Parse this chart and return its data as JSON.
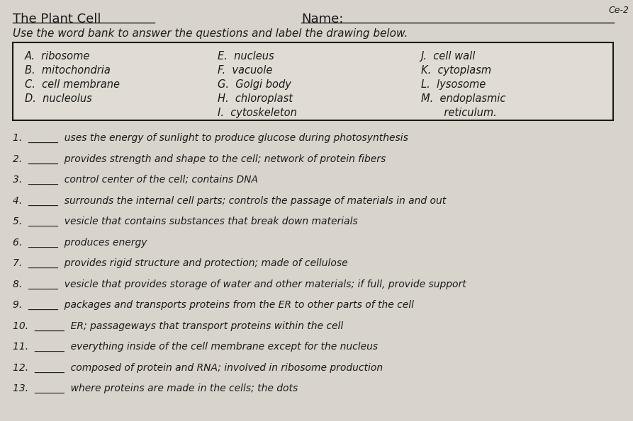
{
  "title_left": "The Plant Cell",
  "title_right": "Name:",
  "corner_text": "Ce-2",
  "subtitle": "Use the word bank to answer the questions and label the drawing below.",
  "word_bank": [
    [
      "A.  ribosome",
      "E.  nucleus",
      "J.  cell wall"
    ],
    [
      "B.  mitochondria",
      "F.  vacuole",
      "K.  cytoplasm"
    ],
    [
      "C.  cell membrane",
      "G.  Golgi body",
      "L.  lysosome"
    ],
    [
      "D.  nucleolus",
      "H.  chloroplast",
      "M.  endoplasmic"
    ],
    [
      "",
      "I.  cytoskeleton",
      "       reticulum."
    ]
  ],
  "questions": [
    "1.  ______  uses the energy of sunlight to produce glucose during photosynthesis",
    "2.  ______  provides strength and shape to the cell; network of protein fibers",
    "3.  ______  control center of the cell; contains DNA",
    "4.  ______  surrounds the internal cell parts; controls the passage of materials in and out",
    "5.  ______  vesicle that contains substances that break down materials",
    "6.  ______  produces energy",
    "7.  ______  provides rigid structure and protection; made of cellulose",
    "8.  ______  vesicle that provides storage of water and other materials; if full, provide support",
    "9.  ______  packages and transports proteins from the ER to other parts of the cell",
    "10.  ______  ER; passageways that transport proteins within the cell",
    "11.  ______  everything inside of the cell membrane except for the nucleus",
    "12.  ______  composed of protein and RNA; involved in ribosome production",
    "13.  ______  where proteins are made in the cells; the dots"
  ],
  "bg_color": "#d8d4cc",
  "box_color": "#c8c4bc",
  "text_color": "#1a1a1a",
  "font_size_title": 13,
  "font_size_subtitle": 11,
  "font_size_wordbank": 10.5,
  "font_size_questions": 10
}
